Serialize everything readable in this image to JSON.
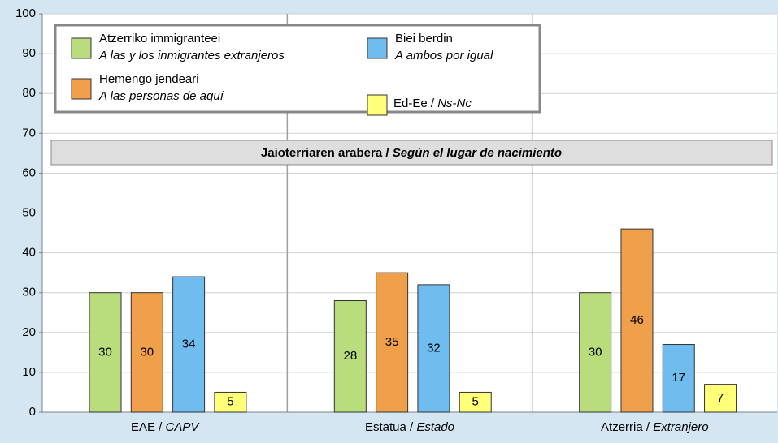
{
  "chart_data": {
    "type": "bar",
    "categories": [
      [
        "EAE / ",
        "CAPV"
      ],
      [
        "Estatua / ",
        "Estado"
      ],
      [
        "Atzerria / ",
        "Extranjero"
      ]
    ],
    "series": [
      {
        "name": [
          "Atzerriko immigranteei",
          "A las y los inmigrantes extranjeros"
        ],
        "color": "#b9dc7d",
        "values": [
          30,
          28,
          30
        ]
      },
      {
        "name": [
          "Hemengo jendeari",
          "A las personas de aquí"
        ],
        "color": "#f0a04b",
        "values": [
          30,
          35,
          46
        ]
      },
      {
        "name": [
          "Biei berdin",
          "A ambos por igual"
        ],
        "color": "#6fbdef",
        "values": [
          34,
          32,
          17
        ]
      },
      {
        "name": [
          "Ed-Ee / ",
          "Ns-Nc"
        ],
        "color": "#ffff78",
        "values": [
          5,
          5,
          7
        ]
      }
    ],
    "annotation": [
      "Jaioterriaren arabera / ",
      "Según el lugar de nacimiento"
    ],
    "ylim": [
      0,
      100
    ],
    "yticks": [
      0,
      10,
      20,
      30,
      40,
      50,
      60,
      70,
      80,
      90,
      100
    ],
    "grid": true
  }
}
